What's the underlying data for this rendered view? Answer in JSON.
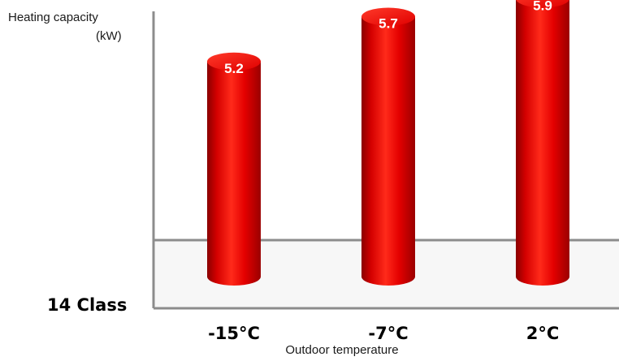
{
  "chart_data": {
    "type": "bar",
    "bar_style": "cylinder",
    "ylabel": [
      "Heating capacity",
      "(kW)"
    ],
    "xlabel": "Outdoor temperature",
    "class_label": "14 Class",
    "categories": [
      "-15°C",
      "-7°C",
      "2°C"
    ],
    "values": [
      5.2,
      5.7,
      5.9
    ],
    "data_labels": [
      "5.2",
      "5.7",
      "5.9"
    ],
    "bar_color": "#e8000b",
    "label_color": "#ffffff",
    "grid": false,
    "legend": "none"
  }
}
